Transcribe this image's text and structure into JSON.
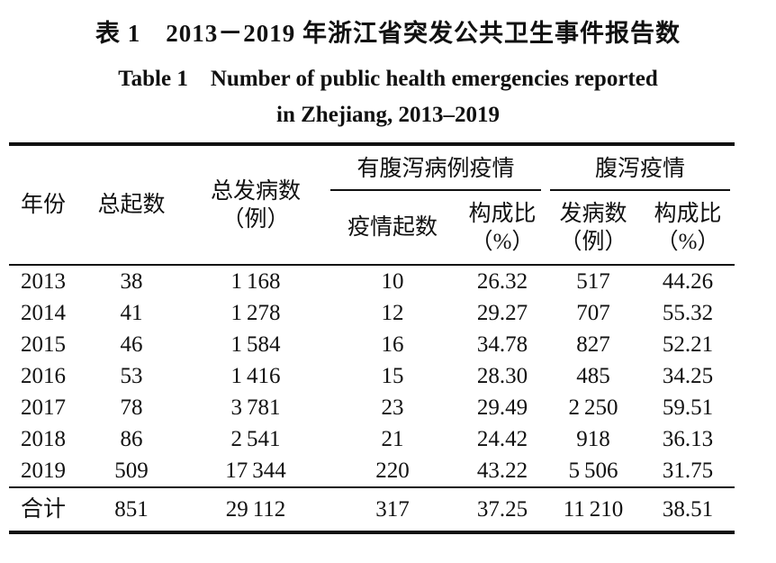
{
  "titles": {
    "chinese": "表 1　2013－2019 年浙江省突发公共卫生事件报告数",
    "english_line1": "Table 1 Number of public health emergencies reported",
    "english_line2": "in Zhejiang, 2013–2019"
  },
  "table": {
    "header": {
      "year": "年份",
      "total_events": "总起数",
      "total_cases_line1": "总发病数",
      "total_cases_line2": "（例）",
      "group_with_diarrhea": "有腹泻病例疫情",
      "group_diarrhea": "腹泻疫情",
      "epidemic_count": "疫情起数",
      "proportion_line1": "构成比",
      "proportion_line2": "（%）",
      "cases_line1": "发病数",
      "cases_line2": "（例）"
    },
    "rows": [
      [
        "2013",
        "38",
        "1 168",
        "10",
        "26.32",
        "517",
        "44.26"
      ],
      [
        "2014",
        "41",
        "1 278",
        "12",
        "29.27",
        "707",
        "55.32"
      ],
      [
        "2015",
        "46",
        "1 584",
        "16",
        "34.78",
        "827",
        "52.21"
      ],
      [
        "2016",
        "53",
        "1 416",
        "15",
        "28.30",
        "485",
        "34.25"
      ],
      [
        "2017",
        "78",
        "3 781",
        "23",
        "29.49",
        "2 250",
        "59.51"
      ],
      [
        "2018",
        "86",
        "2 541",
        "21",
        "24.42",
        "918",
        "36.13"
      ],
      [
        "2019",
        "509",
        "17 344",
        "220",
        "43.22",
        "5 506",
        "31.75"
      ]
    ],
    "total_row": [
      "合计",
      "851",
      "29 112",
      "317",
      "37.25",
      "11 210",
      "38.51"
    ]
  }
}
